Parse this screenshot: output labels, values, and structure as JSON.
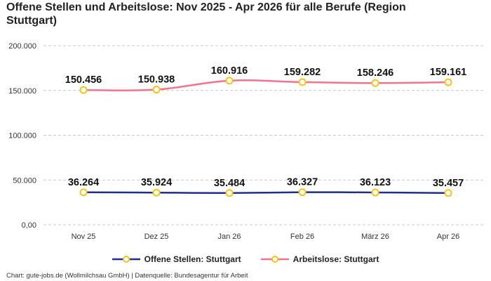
{
  "title": "Offene Stellen und Arbeitslose: Nov 2025 - Apr 2026 für alle Berufe (Region Stuttgart)",
  "source": "Chart: gute-jobs.de (Wollmilchsau GmbH) | Datenquelle: Bundesagentur für Arbeit",
  "chart_data": {
    "type": "line",
    "title": "Offene Stellen und Arbeitslose: Nov 2025 - Apr 2026 für alle Berufe (Region Stuttgart)",
    "xlabel": "",
    "ylabel": "",
    "categories": [
      "Nov 25",
      "Dez 25",
      "Jan 26",
      "Feb 26",
      "März 26",
      "Apr 26"
    ],
    "ylim": [
      0,
      200000
    ],
    "yticks": [
      0,
      50000,
      100000,
      150000,
      200000
    ],
    "ytick_labels": [
      "0,00",
      "50.000",
      "100.000",
      "150.000",
      "200.000"
    ],
    "grid": true,
    "legend_position": "bottom",
    "series": [
      {
        "name": "Offene Stellen: Stuttgart",
        "color": "#1f2f8f",
        "marker_color": "#f5c518",
        "values": [
          36264,
          35924,
          35484,
          36327,
          36123,
          35457
        ],
        "labels": [
          "36.264",
          "35.924",
          "35.484",
          "36.327",
          "36.123",
          "35.457"
        ]
      },
      {
        "name": "Arbeitslose: Stuttgart",
        "color": "#f0748c",
        "marker_color": "#f5c518",
        "values": [
          150456,
          150938,
          160916,
          159282,
          158246,
          159161
        ],
        "labels": [
          "150.456",
          "150.938",
          "160.916",
          "159.282",
          "158.246",
          "159.161"
        ]
      }
    ]
  }
}
